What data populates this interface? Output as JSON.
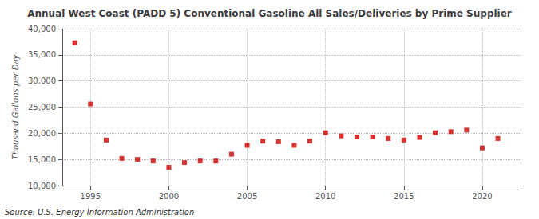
{
  "chart_data": {
    "type": "scatter",
    "title": "Annual West Coast (PADD 5) Conventional Gasoline All Sales/Deliveries by Prime Supplier",
    "ylabel": "Thousand Gallons per Day",
    "annotations": [
      "Source: U.S. Energy Information Administration"
    ],
    "x": [
      1994,
      1995,
      1996,
      1997,
      1998,
      1999,
      2000,
      2001,
      2002,
      2003,
      2004,
      2005,
      2006,
      2007,
      2008,
      2009,
      2010,
      2011,
      2012,
      2013,
      2014,
      2015,
      2016,
      2017,
      2018,
      2019,
      2020,
      2021
    ],
    "values": [
      37300,
      25600,
      18700,
      15200,
      15000,
      14700,
      13500,
      14400,
      14700,
      14700,
      16000,
      17700,
      18500,
      18400,
      17700,
      18500,
      20100,
      19500,
      19300,
      19300,
      19000,
      18700,
      19200,
      20100,
      20300,
      20600,
      17200,
      19000
    ],
    "color": "#cc0000",
    "marker": "square",
    "xlim": [
      1993.2,
      2022.5
    ],
    "xticks": [
      1995,
      2000,
      2005,
      2010,
      2015,
      2020
    ],
    "ylim": [
      10000,
      40000
    ],
    "yticks": [
      {
        "value": 10000,
        "label": "10,000"
      },
      {
        "value": 15000,
        "label": "15,000"
      },
      {
        "value": 20000,
        "label": "20,000"
      },
      {
        "value": 25000,
        "label": "25,000"
      },
      {
        "value": 30000,
        "label": "30,000"
      },
      {
        "value": 35000,
        "label": "35,000"
      },
      {
        "value": 40000,
        "label": "40,000"
      }
    ],
    "grid": true
  }
}
